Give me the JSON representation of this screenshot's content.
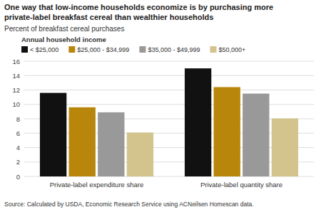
{
  "chart_data": {
    "type": "bar",
    "title": "One way that low-income households economize is by purchasing more",
    "subtitle": "private-label breakfast cereal than wealthier households",
    "y_label": "Percent of breakfast cereal purchases",
    "source": "Source:   Calculated by USDA, Economic Research Service using ACNeilsen Homescan data.",
    "legend_title": "Annual household income",
    "categories": [
      "Private-label expenditure share",
      "Private-label quantity share"
    ],
    "series": [
      {
        "name": "< $25,000",
        "color": "#111111",
        "values": [
          11.6,
          15.0
        ]
      },
      {
        "name": "$25,000 - $34,999",
        "color": "#B8860B",
        "values": [
          9.6,
          12.4
        ]
      },
      {
        "name": "$35,000 - $49,999",
        "color": "#999999",
        "values": [
          8.9,
          11.5
        ]
      },
      {
        "name": "$50,000+",
        "color": "#D2C48C",
        "values": [
          6.1,
          8.05
        ]
      }
    ],
    "ylim": [
      0,
      16
    ],
    "yticks": [
      0,
      2,
      4,
      6,
      8,
      10,
      12,
      14,
      16
    ],
    "grid": true,
    "legend": "top"
  }
}
